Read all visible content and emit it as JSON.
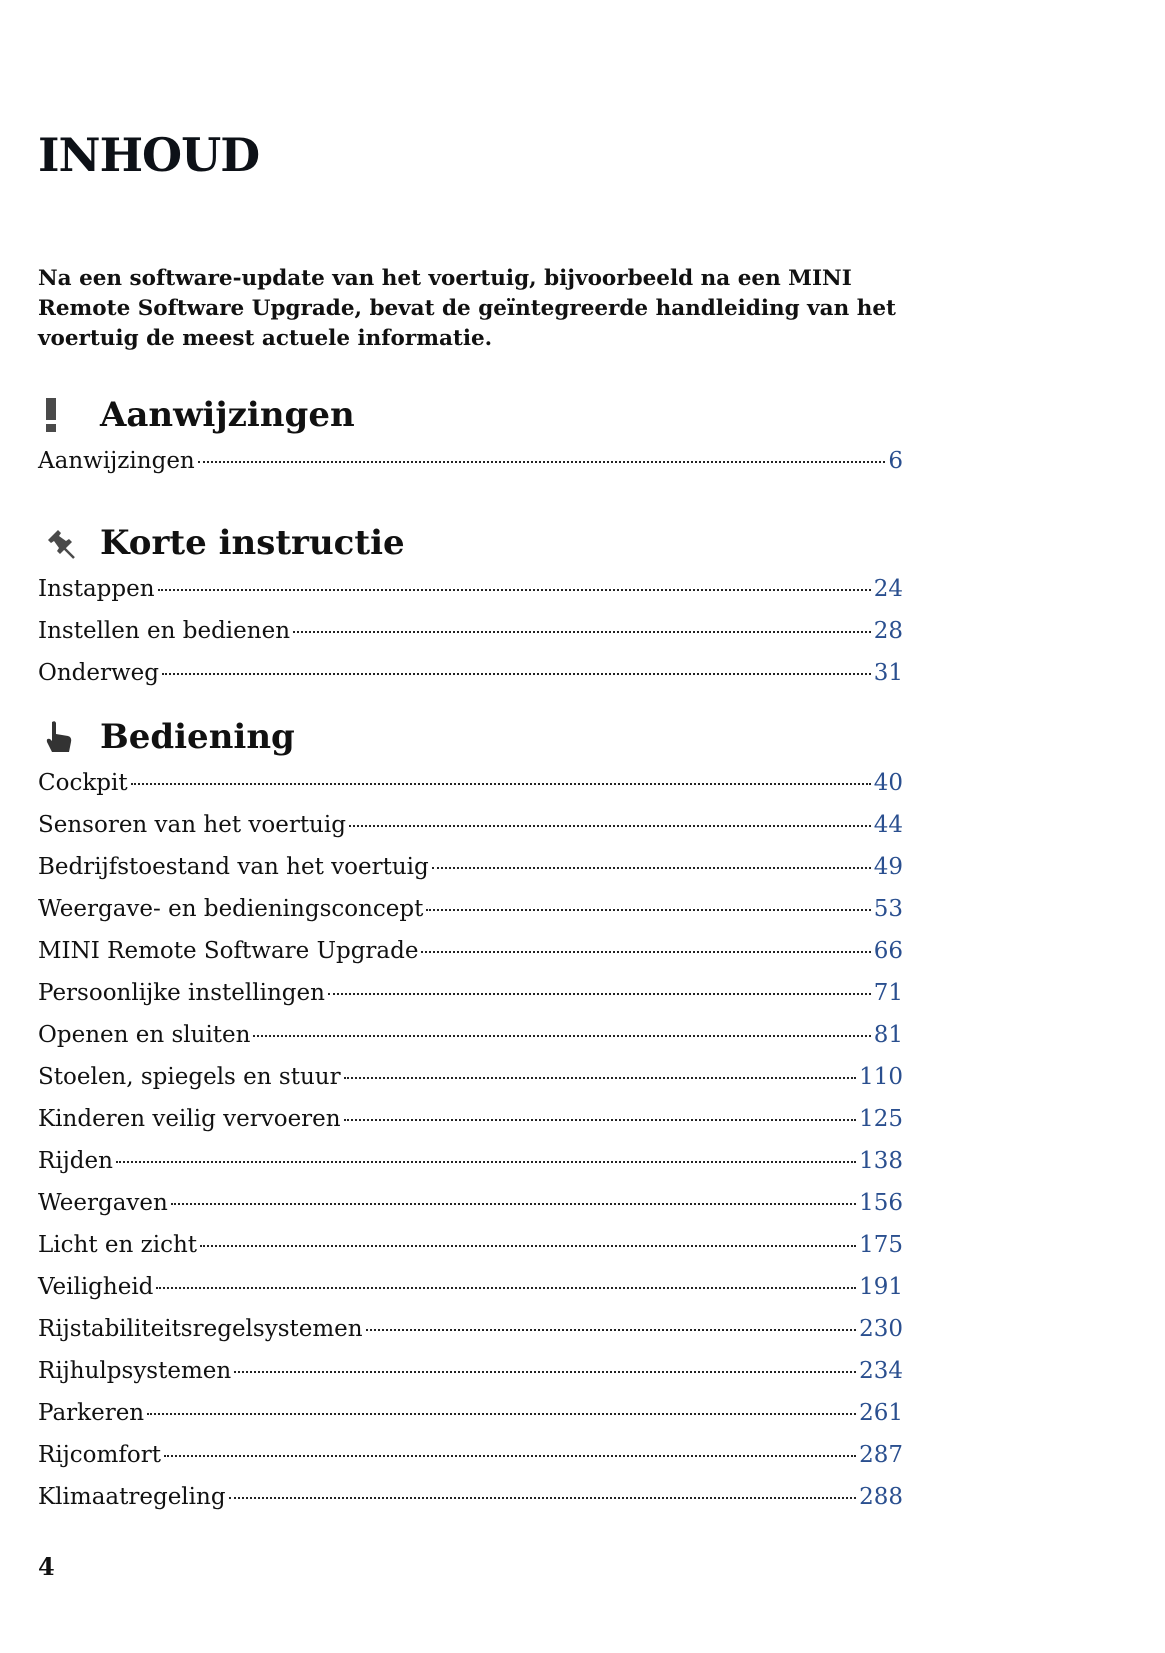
{
  "title": "INHOUD",
  "intro": "Na een software-update van het voertuig, bijvoorbeeld na een MINI Remote Software Upgrade, bevat de geïntegreerde handleiding van het voertuig de meest actuele informatie.",
  "accent_color": "#2a4f8f",
  "sections": [
    {
      "title": "Aanwijzingen",
      "icon": "exclamation-icon",
      "entries": [
        {
          "label": "Aanwijzingen",
          "page": "6"
        }
      ]
    },
    {
      "title": "Korte instructie",
      "icon": "pushpin-icon",
      "entries": [
        {
          "label": "Instappen",
          "page": "24"
        },
        {
          "label": "Instellen en bedienen",
          "page": "28"
        },
        {
          "label": "Onderweg",
          "page": "31"
        }
      ]
    },
    {
      "title": "Bediening",
      "icon": "pointing-hand-icon",
      "entries": [
        {
          "label": "Cockpit",
          "page": "40"
        },
        {
          "label": "Sensoren van het voertuig",
          "page": "44"
        },
        {
          "label": "Bedrijfstoestand van het voertuig",
          "page": "49"
        },
        {
          "label": "Weergave- en bedieningsconcept",
          "page": "53"
        },
        {
          "label": "MINI Remote Software Upgrade",
          "page": "66"
        },
        {
          "label": "Persoonlijke instellingen",
          "page": "71"
        },
        {
          "label": "Openen en sluiten",
          "page": "81"
        },
        {
          "label": "Stoelen, spiegels en stuur",
          "page": "110"
        },
        {
          "label": "Kinderen veilig vervoeren",
          "page": "125"
        },
        {
          "label": "Rijden",
          "page": "138"
        },
        {
          "label": "Weergaven",
          "page": "156"
        },
        {
          "label": "Licht en zicht",
          "page": "175"
        },
        {
          "label": "Veiligheid",
          "page": "191"
        },
        {
          "label": "Rijstabiliteitsregelsystemen",
          "page": "230"
        },
        {
          "label": "Rijhulpsystemen",
          "page": "234"
        },
        {
          "label": "Parkeren",
          "page": "261"
        },
        {
          "label": "Rijcomfort",
          "page": "287"
        },
        {
          "label": "Klimaatregeling",
          "page": "288"
        }
      ]
    }
  ],
  "page_number": "4"
}
